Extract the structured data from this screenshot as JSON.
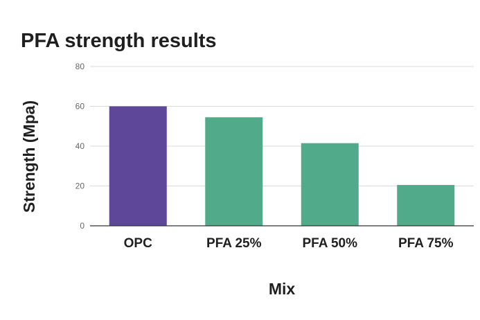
{
  "chart_data": {
    "type": "bar",
    "title": "PFA strength results",
    "xlabel": "Mix",
    "ylabel": "Strength (Mpa)",
    "categories": [
      "OPC",
      "PFA 25%",
      "PFA 50%",
      "PFA 75%"
    ],
    "values": [
      60,
      54.5,
      41.5,
      20.5
    ],
    "ylim": [
      0,
      80
    ],
    "yticks": [
      0,
      20,
      40,
      60,
      80
    ],
    "grid": true,
    "legend": "none",
    "colors": [
      "#5e4699",
      "#51ab8b",
      "#51ab8b",
      "#51ab8b"
    ]
  }
}
